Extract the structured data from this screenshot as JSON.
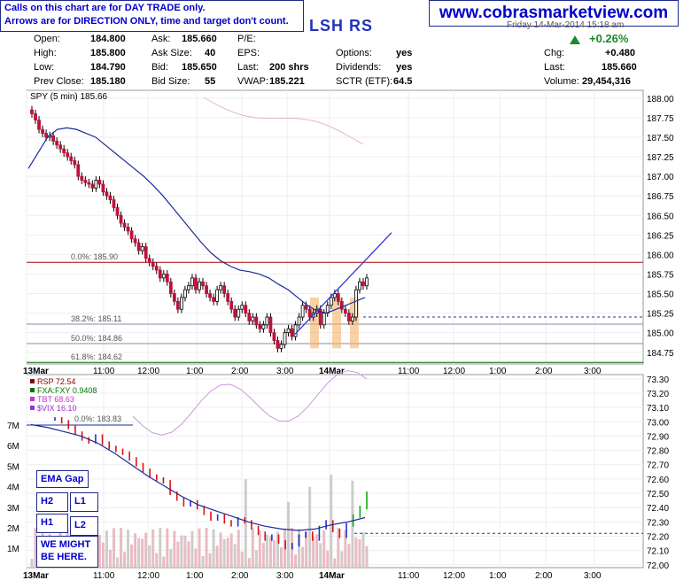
{
  "notes": {
    "line1": "Calls on this chart are for DAY TRADE only.",
    "line2": "Arrows are for DIRECTION ONLY, time and target don't count."
  },
  "site": "www.cobrasmarketview.com",
  "ticker": "LSH RS",
  "date_text": "Friday  14-Mar-2014  15:18 am",
  "quote": {
    "open_label": "Open:",
    "open": "184.800",
    "high_label": "High:",
    "high": "185.800",
    "low_label": "Low:",
    "low": "184.790",
    "prev_label": "Prev Close:",
    "prev": "185.180",
    "ask_label": "Ask:",
    "ask": "185.660",
    "asksize_label": "Ask Size:",
    "asksize": "40",
    "bid_label": "Bid:",
    "bid": "185.650",
    "bidsize_label": "Bid Size:",
    "bidsize": "55",
    "pe_label": "P/E:",
    "eps_label": "EPS:",
    "last_label": "Last:",
    "last_shares": "200 shrs",
    "vwap_label": "VWAP:",
    "vwap": "185.221",
    "options_label": "Options:",
    "options": "yes",
    "dividends_label": "Dividends:",
    "dividends": "yes",
    "sctr_label": "SCTR (ETF):",
    "sctr": "64.5",
    "chg_pct": "+0.26%",
    "chg_label": "Chg:",
    "chg": "+0.480",
    "last2_label": "Last:",
    "last": "185.660",
    "volume_label": "Volume:",
    "volume": "29,454,316"
  },
  "tags": {
    "ema_gap": "EMA Gap",
    "h2": "H2",
    "l1": "L1",
    "h1": "H1",
    "l2": "L2",
    "might_1": "WE MIGHT",
    "might_2": "BE HERE."
  },
  "chart_data": [
    {
      "type": "candlestick",
      "legend": "SPY (5 min) 185.66",
      "ylim": [
        184.6,
        188.1
      ],
      "y_ticks": [
        "188.00",
        "187.75",
        "187.50",
        "187.25",
        "187.00",
        "186.75",
        "186.50",
        "186.25",
        "186.00",
        "185.75",
        "185.50",
        "185.25",
        "185.00",
        "184.75"
      ],
      "x_ticks": [
        "13Mar",
        "11:00",
        "12:00",
        "1:00",
        "2:00",
        "3:00",
        "14Mar",
        "11:00",
        "12:00",
        "1:00",
        "2:00",
        "3:00"
      ],
      "fib_levels": [
        {
          "label": "0.0%: 185.90",
          "value": 185.9,
          "color": "#b00000"
        },
        {
          "label": "38.2%: 185.11",
          "value": 185.11,
          "color": "#8888aa"
        },
        {
          "label": "50.0%: 184.86",
          "value": 184.86,
          "color": "#8888aa"
        },
        {
          "label": "61.8%: 184.62",
          "value": 184.62,
          "color": "#006600"
        }
      ],
      "dashed_level": 185.2,
      "trendline": [
        [
          0,
          184.98
        ],
        [
          10,
          186.28
        ]
      ],
      "close": [
        187.8,
        187.72,
        187.6,
        187.55,
        187.5,
        187.52,
        187.45,
        187.4,
        187.35,
        187.3,
        187.25,
        187.2,
        187.15,
        187.0,
        186.95,
        186.92,
        186.9,
        186.85,
        186.95,
        186.9,
        186.8,
        186.75,
        186.7,
        186.6,
        186.5,
        186.4,
        186.35,
        186.3,
        186.2,
        186.15,
        186.05,
        186.1,
        185.95,
        185.9,
        185.85,
        185.8,
        185.7,
        185.75,
        185.65,
        185.5,
        185.4,
        185.3,
        185.45,
        185.55,
        185.6,
        185.7,
        185.55,
        185.65,
        185.6,
        185.5,
        185.45,
        185.4,
        185.55,
        185.6,
        185.5,
        185.4,
        185.3,
        185.2,
        185.3,
        185.35,
        185.25,
        185.15,
        185.2,
        185.1,
        185.05,
        185.1,
        185.2,
        185.0,
        184.9,
        184.8,
        184.85,
        185.0,
        185.05,
        184.95,
        185.1,
        185.2,
        185.35,
        185.3,
        185.2,
        185.25,
        185.3,
        185.1,
        185.25,
        185.35,
        185.45,
        185.5,
        185.4,
        185.3,
        185.25,
        185.15,
        185.2,
        185.55,
        185.65,
        185.6,
        185.7
      ],
      "ema_rise": [
        186.8,
        187.5
      ],
      "ema": [
        187.1,
        187.3,
        187.5,
        187.6,
        187.62,
        187.6,
        187.55,
        187.5,
        187.4,
        187.3,
        187.2,
        187.1,
        187.0,
        186.88,
        186.75,
        186.6,
        186.45,
        186.3,
        186.15,
        186.02,
        185.92,
        185.85,
        185.8,
        185.78,
        185.75,
        185.7,
        185.62,
        185.55,
        185.45,
        185.35,
        185.28,
        185.25,
        185.3,
        185.35,
        185.4,
        185.45
      ]
    },
    {
      "type": "relative_strength",
      "legend": [
        "RSP 72.54",
        "FXA:FXY 0.9408",
        "TBT 68.63",
        "$VIX 16.10"
      ],
      "legend_colors": [
        "#880000",
        "#007700",
        "#cc33cc",
        "#9933cc"
      ],
      "fib_label": "0.0%: 183.83",
      "ylim": [
        71.98,
        73.33
      ],
      "y_ticks": [
        "73.30",
        "73.20",
        "73.10",
        "73.00",
        "72.90",
        "72.80",
        "72.70",
        "72.60",
        "72.50",
        "72.40",
        "72.30",
        "72.20",
        "72.10",
        "72.00"
      ],
      "volume_ticks": [
        "7M",
        "6M",
        "5M",
        "4M",
        "3M",
        "2M",
        "1M"
      ],
      "dashed_level": 72.22
    }
  ]
}
